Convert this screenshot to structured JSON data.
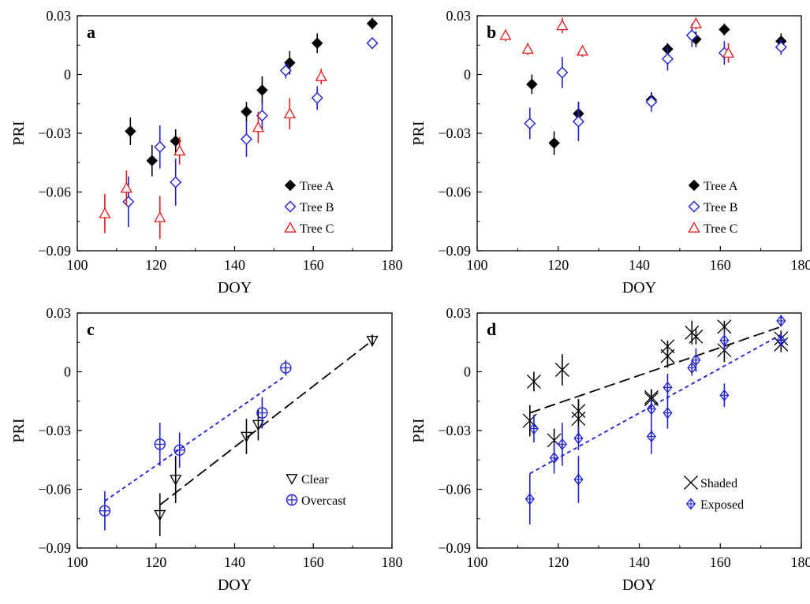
{
  "chart_data": [
    {
      "panel": "a",
      "type": "scatter",
      "xlabel": "DOY",
      "ylabel": "PRI",
      "xlim": [
        100,
        180
      ],
      "ylim": [
        -0.09,
        0.03
      ],
      "xticks": [
        "100",
        "120",
        "140",
        "160",
        "180"
      ],
      "yticks": [
        "0.03",
        "0",
        "−0.03",
        "−0.06",
        "−0.09"
      ],
      "legend_position": "bottom-right",
      "series": [
        {
          "name": "Tree A",
          "marker": "diamond-filled",
          "color": "#000000",
          "points": [
            [
              113.5,
              -0.029,
              0.007
            ],
            [
              119,
              -0.044,
              0.008
            ],
            [
              125,
              -0.034,
              0.006
            ],
            [
              143,
              -0.019,
              0.005
            ],
            [
              147,
              -0.008,
              0.007
            ],
            [
              154,
              0.006,
              0.006
            ],
            [
              161,
              0.016,
              0.005
            ],
            [
              175,
              0.026,
              0.003
            ]
          ]
        },
        {
          "name": "Tree B",
          "marker": "diamond-open",
          "color": "#1f1fd6",
          "points": [
            [
              113,
              -0.065,
              0.013
            ],
            [
              121,
              -0.037,
              0.011
            ],
            [
              125,
              -0.055,
              0.012
            ],
            [
              143,
              -0.033,
              0.009
            ],
            [
              147,
              -0.021,
              0.008
            ],
            [
              153,
              0.002,
              0.004
            ],
            [
              161,
              -0.012,
              0.006
            ],
            [
              175,
              0.016,
              0.003
            ]
          ]
        },
        {
          "name": "Tree C",
          "marker": "triangle-open",
          "color": "#e31a1c",
          "points": [
            [
              107,
              -0.071,
              0.01
            ],
            [
              112.5,
              -0.058,
              0.009
            ],
            [
              121,
              -0.073,
              0.011
            ],
            [
              126,
              -0.039,
              0.007
            ],
            [
              146,
              -0.027,
              0.008
            ],
            [
              154,
              -0.02,
              0.008
            ],
            [
              162,
              -0.001,
              0.004
            ]
          ]
        }
      ]
    },
    {
      "panel": "b",
      "type": "scatter",
      "xlabel": "DOY",
      "ylabel": "PRI",
      "xlim": [
        100,
        180
      ],
      "ylim": [
        -0.09,
        0.03
      ],
      "xticks": [
        "100",
        "120",
        "140",
        "160",
        "180"
      ],
      "yticks": [
        "0.03",
        "0",
        "−0.03",
        "−0.06",
        "−0.09"
      ],
      "legend_position": "bottom-right",
      "series": [
        {
          "name": "Tree A",
          "marker": "diamond-filled",
          "color": "#000000",
          "points": [
            [
              113.5,
              -0.005,
              0.005
            ],
            [
              119,
              -0.035,
              0.006
            ],
            [
              125,
              -0.02,
              0.006
            ],
            [
              143,
              -0.013,
              0.004
            ],
            [
              147,
              0.013,
              0.003
            ],
            [
              154,
              0.018,
              0.004
            ],
            [
              161,
              0.023,
              0.003
            ],
            [
              175,
              0.017,
              0.004
            ]
          ]
        },
        {
          "name": "Tree B",
          "marker": "diamond-open",
          "color": "#1f1fd6",
          "points": [
            [
              113,
              -0.025,
              0.008
            ],
            [
              121,
              0.001,
              0.008
            ],
            [
              125,
              -0.024,
              0.01
            ],
            [
              143,
              -0.014,
              0.005
            ],
            [
              147,
              0.008,
              0.006
            ],
            [
              153,
              0.02,
              0.006
            ],
            [
              161,
              0.011,
              0.006
            ],
            [
              175,
              0.014,
              0.004
            ]
          ]
        },
        {
          "name": "Tree C",
          "marker": "triangle-open",
          "color": "#e31a1c",
          "points": [
            [
              107,
              0.02,
              0.003
            ],
            [
              112.5,
              0.013,
              0.003
            ],
            [
              121,
              0.025,
              0.004
            ],
            [
              126,
              0.012,
              0.003
            ],
            [
              154,
              0.026,
              0.003
            ],
            [
              162,
              0.011,
              0.005
            ]
          ]
        }
      ]
    },
    {
      "panel": "c",
      "type": "scatter",
      "xlabel": "DOY",
      "ylabel": "PRI",
      "xlim": [
        100,
        180
      ],
      "ylim": [
        -0.09,
        0.03
      ],
      "xticks": [
        "100",
        "120",
        "140",
        "160",
        "180"
      ],
      "yticks": [
        "0.03",
        "0",
        "−0.03",
        "−0.06",
        "−0.09"
      ],
      "legend_position": "bottom-right",
      "series": [
        {
          "name": "Clear",
          "marker": "triangle-down-open",
          "color": "#000000",
          "points": [
            [
              121,
              -0.073,
              0.011
            ],
            [
              125,
              -0.055,
              0.012
            ],
            [
              143,
              -0.033,
              0.009
            ],
            [
              146,
              -0.027,
              0.008
            ],
            [
              175,
              0.016,
              0.003
            ]
          ],
          "fit": {
            "x": [
              121,
              175
            ],
            "y": [
              -0.068,
              0.016
            ],
            "style": "long-dash"
          }
        },
        {
          "name": "Overcast",
          "marker": "circle-plus",
          "color": "#1f1fd6",
          "points": [
            [
              107,
              -0.071,
              0.01
            ],
            [
              121,
              -0.037,
              0.011
            ],
            [
              126,
              -0.04,
              0.009
            ],
            [
              147,
              -0.021,
              0.008
            ],
            [
              153,
              0.002,
              0.004
            ]
          ],
          "fit": {
            "x": [
              107,
              153
            ],
            "y": [
              -0.066,
              -0.002
            ],
            "style": "short-dash"
          }
        }
      ]
    },
    {
      "panel": "d",
      "type": "scatter",
      "xlabel": "DOY",
      "ylabel": "PRI",
      "xlim": [
        100,
        180
      ],
      "ylim": [
        -0.09,
        0.03
      ],
      "xticks": [
        "100",
        "120",
        "140",
        "160",
        "180"
      ],
      "yticks": [
        "0.03",
        "0",
        "−0.03",
        "−0.06",
        "−0.09"
      ],
      "legend_position": "bottom-right",
      "series": [
        {
          "name": "Shaded",
          "marker": "x",
          "color": "#000000",
          "points": [
            [
              113,
              -0.025,
              0.008
            ],
            [
              114,
              -0.005,
              0.005
            ],
            [
              119,
              -0.035,
              0.006
            ],
            [
              121,
              0.001,
              0.008
            ],
            [
              125,
              -0.024,
              0.01
            ],
            [
              125,
              -0.02,
              0.006
            ],
            [
              143,
              -0.014,
              0.005
            ],
            [
              143,
              -0.013,
              0.004
            ],
            [
              147,
              0.008,
              0.006
            ],
            [
              147,
              0.013,
              0.003
            ],
            [
              153,
              0.02,
              0.006
            ],
            [
              154,
              0.018,
              0.004
            ],
            [
              161,
              0.023,
              0.003
            ],
            [
              161,
              0.011,
              0.006
            ],
            [
              175,
              0.017,
              0.004
            ],
            [
              175,
              0.014,
              0.004
            ]
          ],
          "fit": {
            "x": [
              113,
              175
            ],
            "y": [
              -0.021,
              0.023
            ],
            "style": "long-dash"
          }
        },
        {
          "name": "Exposed",
          "marker": "diamond-plus",
          "color": "#1f1fd6",
          "points": [
            [
              113,
              -0.065,
              0.013
            ],
            [
              114,
              -0.029,
              0.007
            ],
            [
              119,
              -0.044,
              0.008
            ],
            [
              121,
              -0.037,
              0.011
            ],
            [
              125,
              -0.055,
              0.012
            ],
            [
              125,
              -0.034,
              0.006
            ],
            [
              143,
              -0.033,
              0.009
            ],
            [
              143,
              -0.019,
              0.005
            ],
            [
              147,
              -0.021,
              0.008
            ],
            [
              147,
              -0.008,
              0.007
            ],
            [
              153,
              0.002,
              0.004
            ],
            [
              154,
              0.006,
              0.006
            ],
            [
              161,
              -0.012,
              0.006
            ],
            [
              161,
              0.016,
              0.005
            ],
            [
              175,
              0.026,
              0.003
            ],
            [
              175,
              0.016,
              0.003
            ]
          ],
          "fit": {
            "x": [
              113,
              175
            ],
            "y": [
              -0.052,
              0.019
            ],
            "style": "short-dash"
          }
        }
      ]
    }
  ]
}
